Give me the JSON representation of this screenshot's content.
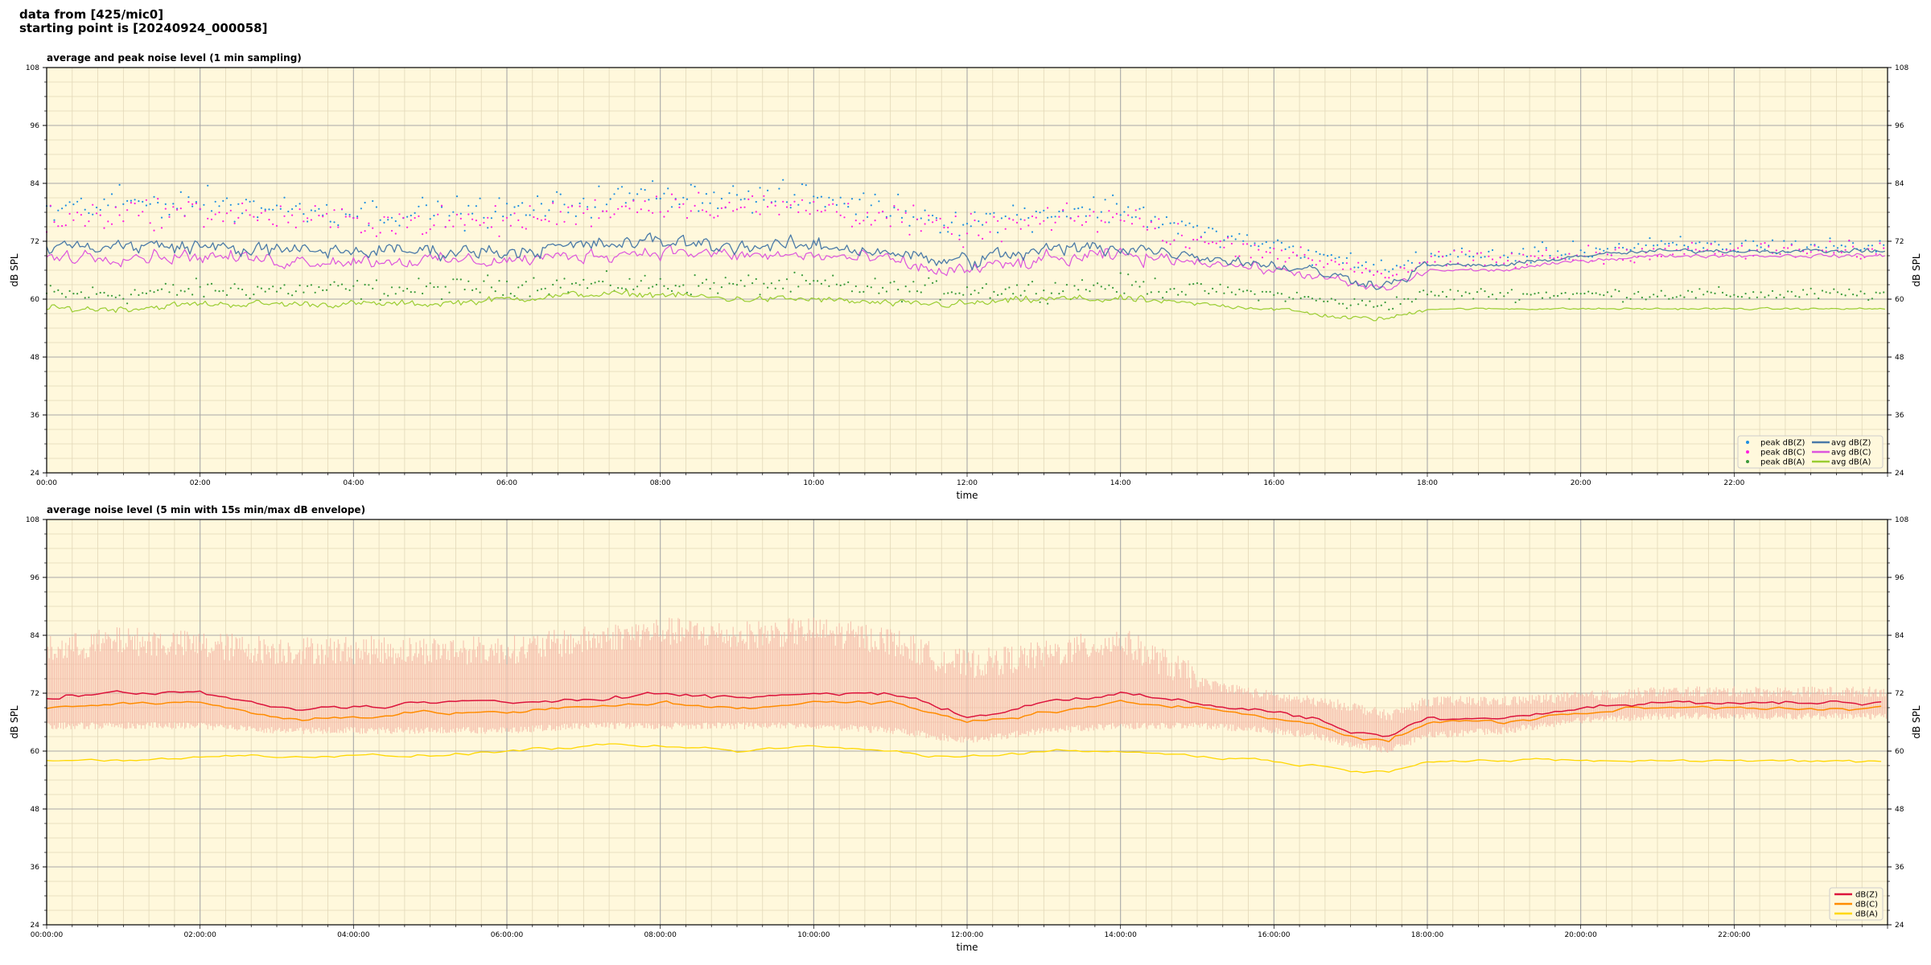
{
  "header": {
    "line1": "data from [425/mic0]",
    "line2": "starting point is [20240924_000058]"
  },
  "colors": {
    "background": "#fff8dc",
    "grid_major": "#a8a8a8",
    "grid_minor": "#e2d8b8",
    "peak_z": "#1f8fe0",
    "peak_c": "#ff1fe0",
    "peak_a": "#3a9a3a",
    "avg_z": "#4a7aa8",
    "avg_c": "#dd55dd",
    "avg_a": "#9acd32",
    "z5": "#dc143c",
    "c5": "#ff8c00",
    "a5": "#ffd700",
    "envelope": "#f4b0a0"
  },
  "chart_data": [
    {
      "type": "line",
      "title": "average and peak noise level (1 min sampling)",
      "xlabel": "time",
      "ylabel": "dB SPL",
      "ylabel_right": "dB SPL",
      "xlim_hours": [
        0,
        24
      ],
      "ylim": [
        24,
        108
      ],
      "yticks": [
        "24",
        "36",
        "48",
        "60",
        "72",
        "84",
        "96",
        "108"
      ],
      "xtick_labels": [
        "00:00",
        "02:00",
        "04:00",
        "06:00",
        "08:00",
        "10:00",
        "12:00",
        "14:00",
        "16:00",
        "18:00",
        "20:00",
        "22:00"
      ],
      "grid": true,
      "legend_position": "lower-right",
      "legend": [
        "peak dB(Z)",
        "peak dB(C)",
        "peak dB(A)",
        "avg dB(Z)",
        "avg dB(C)",
        "avg dB(A)"
      ],
      "series_trend": {
        "hours": [
          0,
          1,
          2,
          3,
          4,
          5,
          6,
          7,
          8,
          9,
          10,
          11,
          11.5,
          12,
          13,
          14,
          15,
          16,
          16.5,
          17,
          17.5,
          18,
          19,
          20,
          21,
          22,
          23,
          24
        ],
        "avg_z": [
          71,
          71,
          71,
          70,
          70,
          70,
          70,
          71,
          72,
          71,
          71,
          70,
          68,
          68,
          70,
          71,
          69,
          67,
          66,
          64,
          63,
          67,
          67,
          69,
          70,
          70,
          70,
          70
        ],
        "avg_c": [
          69,
          69,
          69,
          68,
          68,
          68,
          68,
          69,
          70,
          69,
          69,
          68,
          66,
          66,
          68,
          69,
          68,
          66,
          65,
          63,
          62,
          66,
          66,
          68,
          69,
          69,
          69,
          69
        ],
        "avg_a": [
          58,
          58,
          59,
          59,
          59,
          59,
          60,
          61,
          61,
          60,
          60,
          59,
          59,
          59,
          60,
          60,
          59,
          58,
          57,
          56,
          56,
          58,
          58,
          58,
          58,
          58,
          58,
          58
        ],
        "peak_z": [
          78,
          80,
          80,
          79,
          78,
          78,
          78,
          80,
          82,
          81,
          81,
          79,
          77,
          76,
          78,
          79,
          74,
          71,
          69,
          68,
          66,
          69,
          69,
          70,
          71,
          71,
          71,
          71
        ],
        "peak_c": [
          76,
          78,
          78,
          77,
          76,
          76,
          76,
          78,
          80,
          79,
          79,
          77,
          75,
          74,
          76,
          77,
          72,
          70,
          68,
          67,
          65,
          68,
          68,
          69,
          70,
          70,
          70,
          70
        ],
        "peak_a": [
          61,
          61,
          62,
          62,
          62,
          62,
          63,
          63,
          63,
          63,
          63,
          62,
          62,
          62,
          62,
          63,
          62,
          61,
          60,
          59,
          59,
          61,
          61,
          61,
          61,
          61,
          61,
          61
        ]
      }
    },
    {
      "type": "line",
      "title": "average noise level (5 min with 15s min/max dB envelope)",
      "xlabel": "time",
      "ylabel": "dB SPL",
      "ylabel_right": "dB SPL",
      "xlim_hours": [
        0,
        24
      ],
      "ylim": [
        24,
        108
      ],
      "yticks": [
        "24",
        "36",
        "48",
        "60",
        "72",
        "84",
        "96",
        "108"
      ],
      "xtick_labels": [
        "00:00:00",
        "02:00:00",
        "04:00:00",
        "06:00:00",
        "08:00:00",
        "10:00:00",
        "12:00:00",
        "14:00:00",
        "16:00:00",
        "18:00:00",
        "20:00:00",
        "22:00:00"
      ],
      "grid": true,
      "legend_position": "lower-right",
      "legend": [
        "dB(Z)",
        "dB(C)",
        "dB(A)"
      ],
      "series_trend": {
        "hours": [
          0,
          1,
          2,
          3,
          4,
          5,
          6,
          7,
          8,
          9,
          10,
          11,
          11.5,
          12,
          13,
          14,
          15,
          16,
          16.5,
          17,
          17.5,
          18,
          19,
          20,
          21,
          22,
          23,
          24
        ],
        "z": [
          71,
          72,
          72,
          69,
          69,
          70,
          70,
          71,
          72,
          71,
          72,
          72,
          70,
          67,
          70,
          72,
          70,
          68,
          67,
          64,
          63,
          67,
          67,
          69,
          70,
          70,
          70,
          70
        ],
        "c": [
          69,
          70,
          70,
          67,
          67,
          68,
          68,
          69,
          70,
          69,
          70,
          70,
          68,
          66,
          68,
          70,
          69,
          67,
          66,
          63,
          62,
          66,
          66,
          68,
          69,
          69,
          69,
          69
        ],
        "a": [
          58,
          58,
          59,
          59,
          59,
          59,
          60,
          61,
          61,
          60,
          61,
          60,
          59,
          59,
          60,
          60,
          59,
          58,
          57,
          56,
          56,
          58,
          58,
          58,
          58,
          58,
          58,
          58
        ],
        "env_max": [
          80,
          82,
          81,
          80,
          80,
          80,
          80,
          82,
          84,
          83,
          84,
          82,
          79,
          77,
          79,
          82,
          74,
          71,
          70,
          69,
          67,
          70,
          70,
          71,
          72,
          72,
          72,
          72
        ],
        "env_min": [
          66,
          66,
          66,
          65,
          65,
          65,
          65,
          66,
          66,
          66,
          66,
          65,
          64,
          63,
          65,
          66,
          66,
          65,
          64,
          62,
          61,
          64,
          65,
          67,
          68,
          68,
          68,
          68
        ]
      }
    }
  ]
}
